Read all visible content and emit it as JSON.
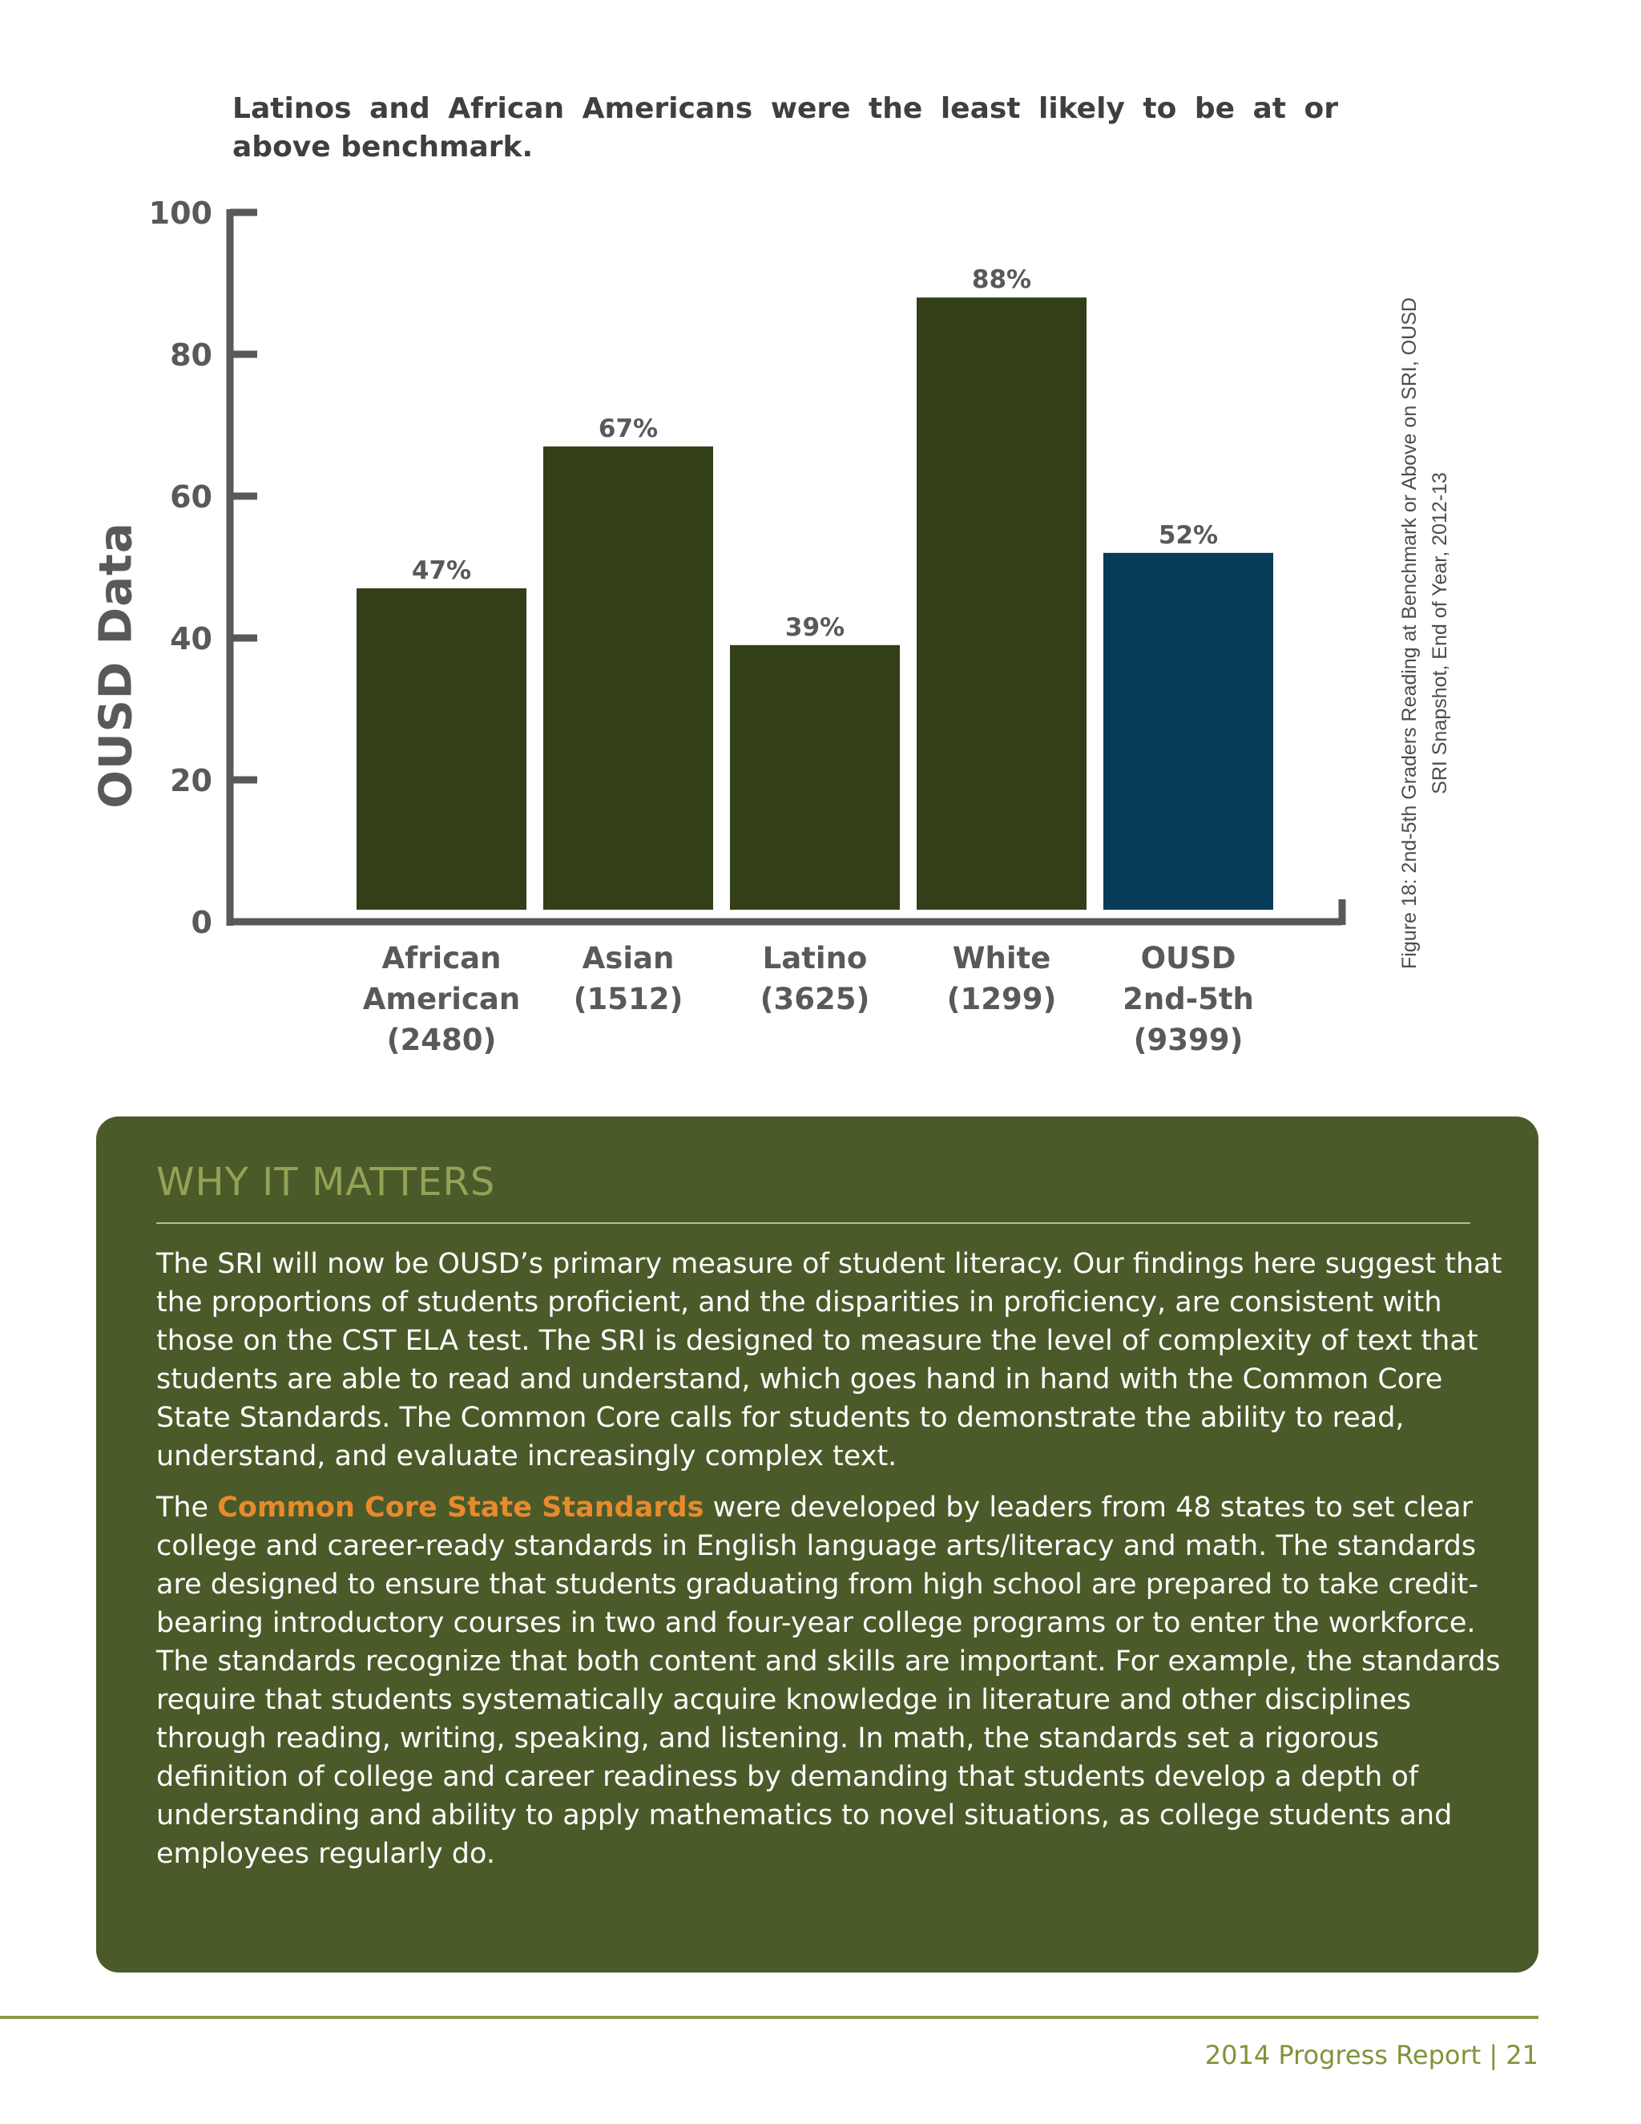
{
  "intro": {
    "text": "Latinos and African Americans were the least likely to be at or above benchmark."
  },
  "side_label": "OUSD Data",
  "caption": {
    "line1": "Figure 18: 2nd-5th Graders Reading at Benchmark or Above on SRI, OUSD",
    "line2": "SRI Snapshot, End of Year, 2012-13"
  },
  "chart_data": {
    "type": "bar",
    "categories": [
      [
        "African",
        "American",
        "(2480)"
      ],
      [
        "Asian",
        "(1512)"
      ],
      [
        "Latino",
        "(3625)"
      ],
      [
        "White",
        "(1299)"
      ],
      [
        "OUSD",
        "2nd-5th",
        "(9399)"
      ]
    ],
    "values": [
      47,
      67,
      39,
      88,
      52
    ],
    "value_labels": [
      "47%",
      "67%",
      "39%",
      "88%",
      "52%"
    ],
    "bar_colors": [
      "#323f18",
      "#323f18",
      "#323f18",
      "#323f18",
      "#063c58"
    ],
    "ylim": [
      0,
      100
    ],
    "yticks": [
      0,
      20,
      40,
      60,
      80,
      100
    ],
    "ytick_labels": [
      "0",
      "20",
      "40",
      "60",
      "80",
      "100"
    ],
    "grid": false,
    "axis_color": "#58595b"
  },
  "panel": {
    "title": "WHY IT MATTERS",
    "p1": "The SRI will now be OUSD’s primary measure of student literacy. Our findings here suggest that the proportions of students proficient, and the disparities in proficiency, are consistent with those on the CST ELA test.  The SRI is designed to measure the level of complexity of text that students are able to read and understand, which goes hand in hand with the Common Core State Standards. The Common Core calls for students to demonstrate the ability to read, understand, and evaluate increasingly complex text.",
    "p2_pre": "The ",
    "p2_highlight": "Common Core State Standards",
    "p2_post": " were developed by leaders from 48 states to set clear college and career-ready standards in English language arts/literacy and math.  The standards are designed to ensure that students graduating from high school are prepared to take credit-bearing introductory courses in two and four-year college programs or to enter the workforce. The standards recognize that both content and skills are important. For example, the standards require that students systematically acquire knowledge in literature and other disciplines through reading, writing, speaking, and listening.  In math, the standards set a rigorous definition of college and career readiness by demanding that students develop a depth of understanding and ability to apply mathematics to novel situations, as college students and employees regularly do."
  },
  "footer": "2014 Progress Report | 21"
}
